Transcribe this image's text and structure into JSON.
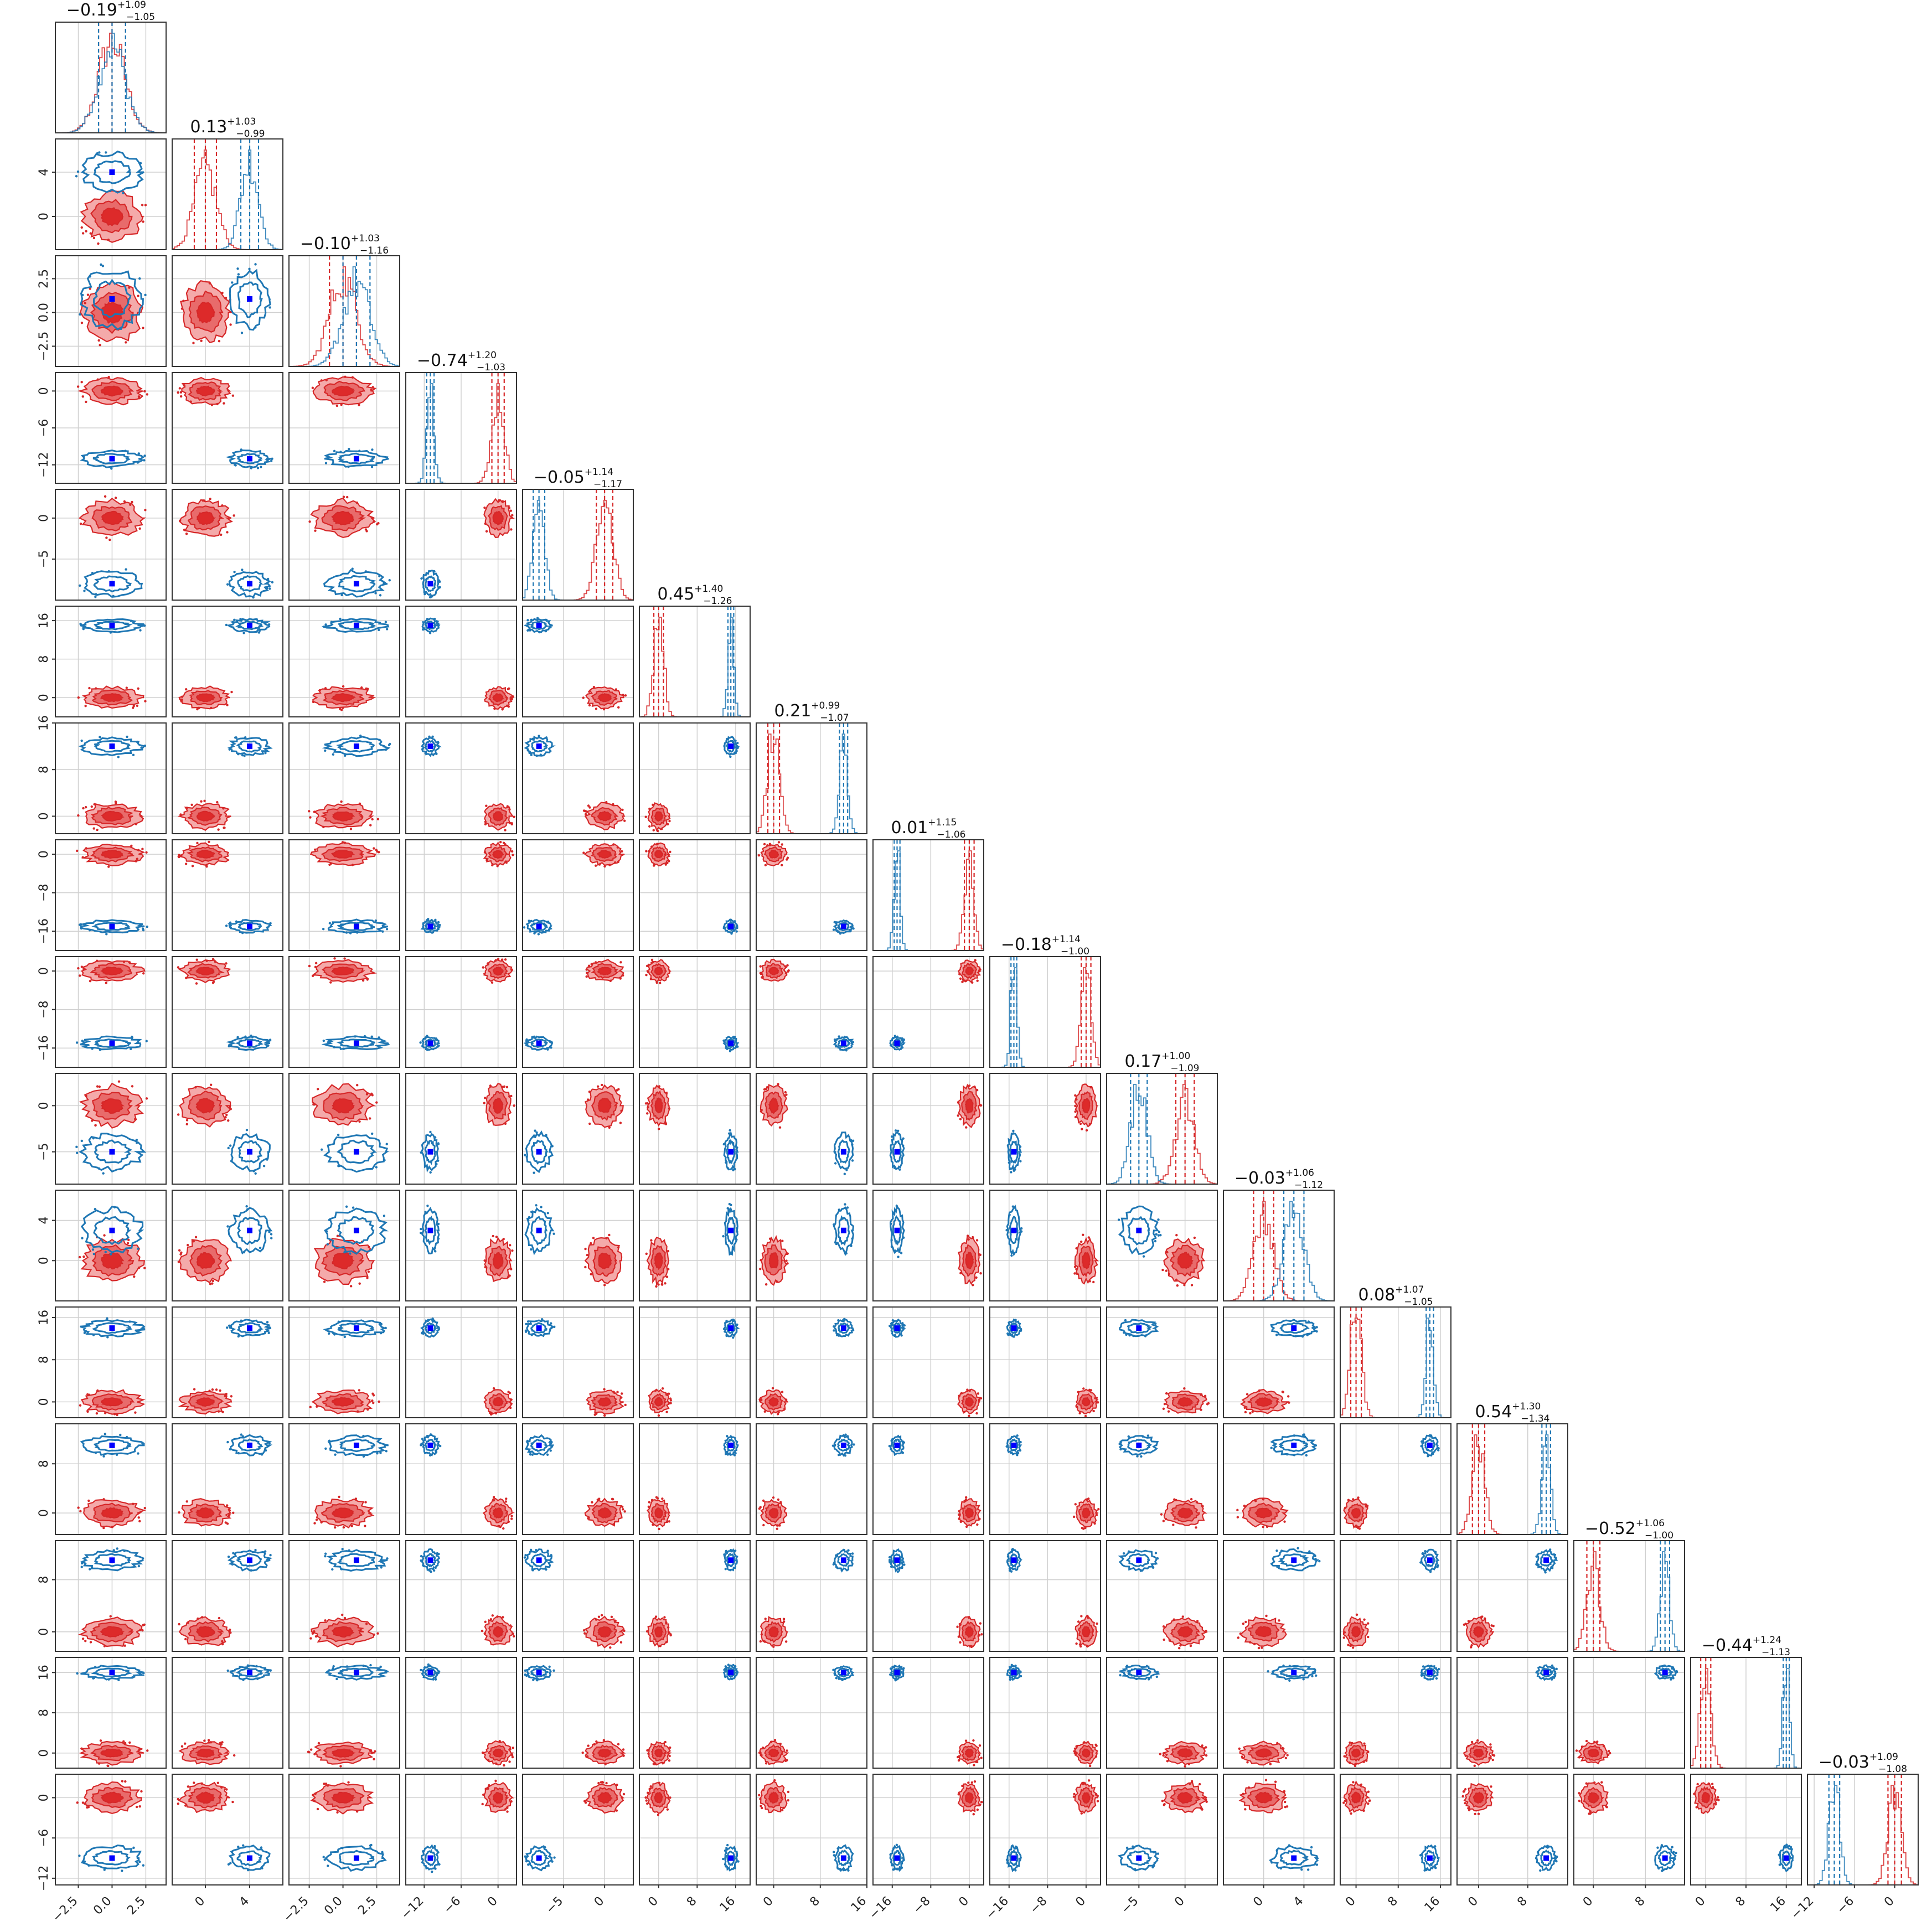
{
  "chart_data": {
    "type": "scatter",
    "subtype": "corner",
    "n_params": 16,
    "grid": true,
    "series": [
      {
        "color": "#d62728",
        "marker_color": null
      },
      {
        "color": "#1f77b4",
        "marker_color": "#0000ff"
      }
    ],
    "titles": [
      {
        "value": "−0.19",
        "plus": "+1.09",
        "minus": "−1.05"
      },
      {
        "value": "0.13",
        "plus": "+1.03",
        "minus": "−0.99"
      },
      {
        "value": "−0.10",
        "plus": "+1.03",
        "minus": "−1.16"
      },
      {
        "value": "−0.74",
        "plus": "+1.20",
        "minus": "−1.03"
      },
      {
        "value": "−0.05",
        "plus": "+1.14",
        "minus": "−1.17"
      },
      {
        "value": "0.45",
        "plus": "+1.40",
        "minus": "−1.26"
      },
      {
        "value": "0.21",
        "plus": "+0.99",
        "minus": "−1.07"
      },
      {
        "value": "0.01",
        "plus": "+1.15",
        "minus": "−1.06"
      },
      {
        "value": "−0.18",
        "plus": "+1.14",
        "minus": "−1.00"
      },
      {
        "value": "0.17",
        "plus": "+1.00",
        "minus": "−1.09"
      },
      {
        "value": "−0.03",
        "plus": "+1.06",
        "minus": "−1.12"
      },
      {
        "value": "0.08",
        "plus": "+1.07",
        "minus": "−1.05"
      },
      {
        "value": "0.54",
        "plus": "+1.30",
        "minus": "−1.34"
      },
      {
        "value": "−0.52",
        "plus": "+1.06",
        "minus": "−1.00"
      },
      {
        "value": "−0.44",
        "plus": "+1.24",
        "minus": "−1.13"
      },
      {
        "value": "−0.03",
        "plus": "+1.09",
        "minus": "−1.08"
      }
    ],
    "params": [
      {
        "range": [
          -4.2,
          4.0
        ],
        "ticks": [
          "−2.5",
          "0.0",
          "2.5"
        ],
        "tick_values": [
          -2.5,
          0.0,
          2.5
        ],
        "red": {
          "mean": 0.0,
          "sd": 1.0
        },
        "blue": {
          "mean": 0.0,
          "sd": 1.0
        },
        "truth": 0.0
      },
      {
        "range": [
          -3.0,
          7.0
        ],
        "ticks": [
          "0",
          "4"
        ],
        "tick_values": [
          0,
          4
        ],
        "red": {
          "mean": 0.0,
          "sd": 1.0
        },
        "blue": {
          "mean": 4.0,
          "sd": 0.8
        },
        "truth": 4.0
      },
      {
        "range": [
          -4.0,
          4.2
        ],
        "ticks": [
          "−2.5",
          "0.0",
          "2.5"
        ],
        "tick_values": [
          -2.5,
          0.0,
          2.5
        ],
        "red": {
          "mean": 0.0,
          "sd": 1.0
        },
        "blue": {
          "mean": 1.0,
          "sd": 1.0
        },
        "truth": 1.0
      },
      {
        "range": [
          -15.0,
          3.0
        ],
        "ticks": [
          "−12",
          "−6",
          "0"
        ],
        "tick_values": [
          -12,
          -6,
          0
        ],
        "red": {
          "mean": 0.0,
          "sd": 1.0
        },
        "blue": {
          "mean": -11.0,
          "sd": 0.6
        },
        "truth": -11.0
      },
      {
        "range": [
          -10.0,
          3.5
        ],
        "ticks": [
          "−5",
          "0"
        ],
        "tick_values": [
          -5,
          0
        ],
        "red": {
          "mean": 0.0,
          "sd": 1.0
        },
        "blue": {
          "mean": -8.0,
          "sd": 0.7
        },
        "truth": -8.0
      },
      {
        "range": [
          -4.0,
          19.0
        ],
        "ticks": [
          "0",
          "8",
          "16"
        ],
        "tick_values": [
          0,
          8,
          16
        ],
        "red": {
          "mean": 0.0,
          "sd": 1.0
        },
        "blue": {
          "mean": 15.0,
          "sd": 0.6
        },
        "truth": 15.0
      },
      {
        "range": [
          -3.0,
          16.0
        ],
        "ticks": [
          "0",
          "8",
          "16"
        ],
        "tick_values": [
          0,
          8,
          16
        ],
        "red": {
          "mean": 0.0,
          "sd": 1.0
        },
        "blue": {
          "mean": 12.0,
          "sd": 0.7
        },
        "truth": 12.0
      },
      {
        "range": [
          -20.0,
          3.0
        ],
        "ticks": [
          "−16",
          "−8",
          "0"
        ],
        "tick_values": [
          -16,
          -8,
          0
        ],
        "red": {
          "mean": 0.0,
          "sd": 1.0
        },
        "blue": {
          "mean": -15.0,
          "sd": 0.6
        },
        "truth": -15.0
      },
      {
        "range": [
          -20.0,
          3.0
        ],
        "ticks": [
          "−16",
          "−8",
          "0"
        ],
        "tick_values": [
          -16,
          -8,
          0
        ],
        "red": {
          "mean": 0.0,
          "sd": 1.0
        },
        "blue": {
          "mean": -15.0,
          "sd": 0.6
        },
        "truth": -15.0
      },
      {
        "range": [
          -8.5,
          3.5
        ],
        "ticks": [
          "−5",
          "0"
        ],
        "tick_values": [
          -5,
          0
        ],
        "red": {
          "mean": 0.0,
          "sd": 1.0
        },
        "blue": {
          "mean": -5.0,
          "sd": 0.9
        },
        "truth": -5.0
      },
      {
        "range": [
          -4.0,
          7.0
        ],
        "ticks": [
          "0",
          "4"
        ],
        "tick_values": [
          0,
          4
        ],
        "red": {
          "mean": 0.0,
          "sd": 1.0
        },
        "blue": {
          "mean": 3.0,
          "sd": 1.0
        },
        "truth": 3.0
      },
      {
        "range": [
          -3.0,
          18.0
        ],
        "ticks": [
          "0",
          "8",
          "16"
        ],
        "tick_values": [
          0,
          8,
          16
        ],
        "red": {
          "mean": 0.0,
          "sd": 1.0
        },
        "blue": {
          "mean": 14.0,
          "sd": 0.7
        },
        "truth": 14.0
      },
      {
        "range": [
          -3.5,
          14.5
        ],
        "ticks": [
          "0",
          "8"
        ],
        "tick_values": [
          0,
          8
        ],
        "red": {
          "mean": 0.0,
          "sd": 1.0
        },
        "blue": {
          "mean": 11.0,
          "sd": 0.7
        },
        "truth": 11.0
      },
      {
        "range": [
          -3.0,
          14.0
        ],
        "ticks": [
          "0",
          "8"
        ],
        "tick_values": [
          0,
          8
        ],
        "red": {
          "mean": 0.0,
          "sd": 1.0
        },
        "blue": {
          "mean": 11.0,
          "sd": 0.7
        },
        "truth": 11.0
      },
      {
        "range": [
          -3.0,
          19.0
        ],
        "ticks": [
          "0",
          "8",
          "16"
        ],
        "tick_values": [
          0,
          8,
          16
        ],
        "red": {
          "mean": 0.0,
          "sd": 1.0
        },
        "blue": {
          "mean": 16.0,
          "sd": 0.6
        },
        "truth": 16.0
      },
      {
        "range": [
          -13.0,
          3.5
        ],
        "ticks": [
          "−12",
          "−6",
          "0"
        ],
        "tick_values": [
          -12,
          -6,
          0
        ],
        "red": {
          "mean": 0.0,
          "sd": 1.0
        },
        "blue": {
          "mean": -9.0,
          "sd": 0.8
        },
        "truth": -9.0
      }
    ]
  }
}
